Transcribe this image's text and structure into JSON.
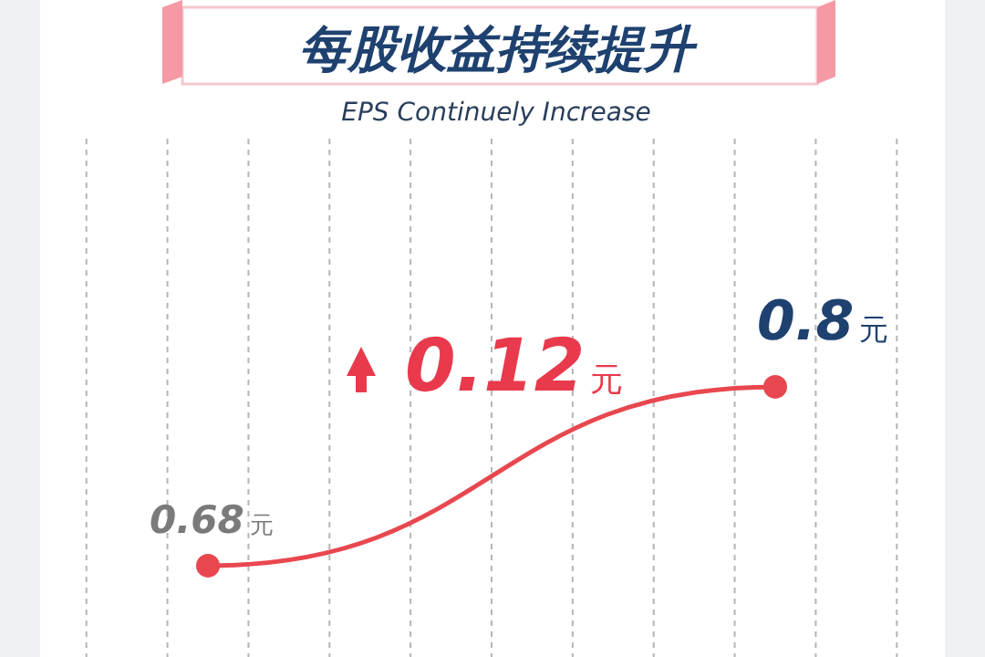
{
  "chart_data": {
    "type": "line",
    "title": "每股收益持续提升",
    "subtitle": "EPS Continuely Increase",
    "categories": [
      null,
      null
    ],
    "series": [
      {
        "color": "#e8474f",
        "values": [
          0.68,
          0.8
        ],
        "value_labels": [
          "0.68元",
          "0.8元"
        ]
      }
    ],
    "annotations": [
      "0.12元"
    ],
    "grid": "x",
    "marker": "circle"
  }
}
